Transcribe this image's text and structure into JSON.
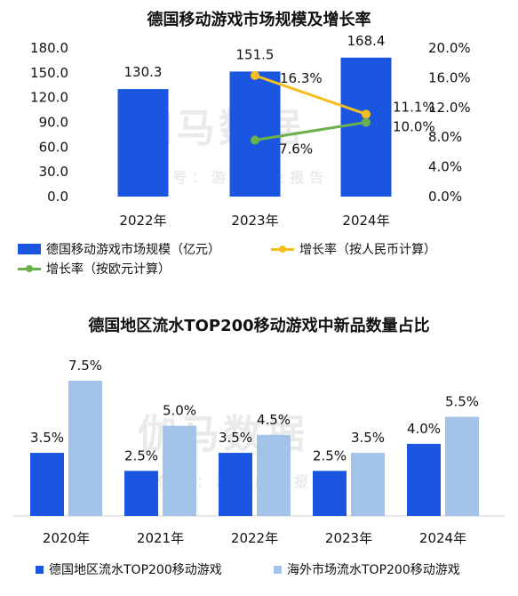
{
  "charts": [
    {
      "chart_data": {
        "type": "bar+line",
        "title": "德国移动游戏市场规模及增长率",
        "categories": [
          "2022年",
          "2023年",
          "2024年"
        ],
        "left_axis": {
          "ticks": [
            "180.0",
            "150.0",
            "120.0",
            "90.0",
            "60.0",
            "30.0",
            "0.0"
          ],
          "range": [
            0,
            180
          ]
        },
        "right_axis": {
          "ticks": [
            "20.0%",
            "16.0%",
            "12.0%",
            "8.0%",
            "4.0%",
            "0.0%"
          ],
          "range": [
            0,
            20
          ]
        },
        "bars": {
          "name": "德国移动游戏市场规模（亿元）",
          "values": [
            130.3,
            151.5,
            168.4
          ],
          "labels": [
            "130.3",
            "151.5",
            "168.4"
          ],
          "color": "#1a56e0"
        },
        "lines": [
          {
            "name": "增长率（按人民币计算）",
            "x_index": [
              1,
              2
            ],
            "values": [
              16.3,
              11.1
            ],
            "labels": [
              "16.3%",
              "11.1%"
            ],
            "color": "#f5be1c"
          },
          {
            "name": "增长率（按欧元计算）",
            "x_index": [
              1,
              2
            ],
            "values": [
              7.6,
              10.0
            ],
            "labels": [
              "7.6%",
              "10.0%"
            ],
            "color": "#6ab04c"
          }
        ],
        "grid": false,
        "legend_position": "bottom"
      },
      "watermark": {
        "main": "伽马数据",
        "sub": "微信号：游戏产业报告"
      }
    },
    {
      "chart_data": {
        "type": "bar",
        "title": "德国地区流水TOP200移动游戏中新品数量占比",
        "categories": [
          "2020年",
          "2021年",
          "2022年",
          "2023年",
          "2024年"
        ],
        "ylim": [
          0,
          8
        ],
        "series": [
          {
            "name": "德国地区流水TOP200移动游戏",
            "values": [
              3.5,
              2.5,
              3.5,
              2.5,
              4.0
            ],
            "labels": [
              "3.5%",
              "2.5%",
              "3.5%",
              "2.5%",
              "4.0%"
            ],
            "color": "#1a56e0"
          },
          {
            "name": "海外市场流水TOP200移动游戏",
            "values": [
              7.5,
              5.0,
              4.5,
              3.5,
              5.5
            ],
            "labels": [
              "7.5%",
              "5.0%",
              "4.5%",
              "3.5%",
              "5.5%"
            ],
            "color": "#a3c4e8"
          }
        ],
        "grid": false,
        "legend_position": "bottom"
      },
      "watermark": {
        "main": "伽马数据",
        "sub": "微信号：游戏产业报告"
      }
    }
  ]
}
